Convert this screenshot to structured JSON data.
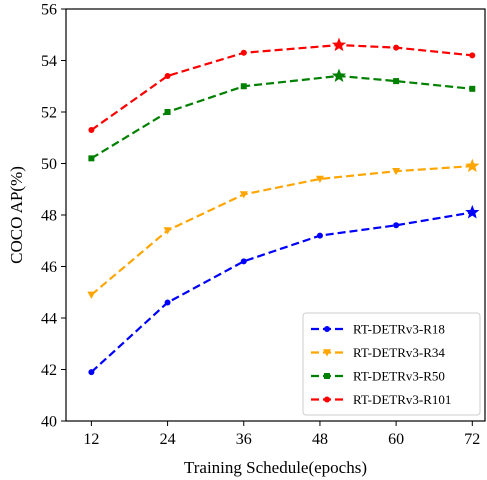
{
  "chart_data": {
    "type": "line",
    "xlabel": "Training Schedule(epochs)",
    "ylabel": "COCO AP(%)",
    "x": [
      12,
      24,
      36,
      48,
      60,
      72
    ],
    "xlim": [
      8,
      74
    ],
    "ylim": [
      40,
      56
    ],
    "yticks": [
      40,
      42,
      44,
      46,
      48,
      50,
      52,
      54,
      56
    ],
    "grid": false,
    "legend_position": "bottom-right",
    "series": [
      {
        "name": "RT-DETRv3-R18",
        "color": "#0000ff",
        "marker": "dot",
        "points": [
          [
            12,
            41.9
          ],
          [
            24,
            44.6
          ],
          [
            36,
            46.2
          ],
          [
            48,
            47.2
          ],
          [
            60,
            47.6
          ],
          [
            72,
            48.1
          ]
        ],
        "highlight": [
          72,
          48.1
        ]
      },
      {
        "name": "RT-DETRv3-R34",
        "color": "#ffa500",
        "marker": "triangle-down",
        "points": [
          [
            12,
            44.9
          ],
          [
            24,
            47.4
          ],
          [
            36,
            48.8
          ],
          [
            48,
            49.4
          ],
          [
            60,
            49.7
          ],
          [
            72,
            49.9
          ]
        ],
        "highlight": [
          72,
          49.9
        ]
      },
      {
        "name": "RT-DETRv3-R50",
        "color": "#008000",
        "marker": "square",
        "points": [
          [
            12,
            50.2
          ],
          [
            24,
            52.0
          ],
          [
            36,
            53.0
          ],
          [
            51,
            53.4
          ],
          [
            60,
            53.2
          ],
          [
            72,
            52.9
          ]
        ],
        "highlight": [
          51,
          53.4
        ]
      },
      {
        "name": "RT-DETRv3-R101",
        "color": "#ff0000",
        "marker": "dot",
        "points": [
          [
            12,
            51.3
          ],
          [
            24,
            53.4
          ],
          [
            36,
            54.3
          ],
          [
            51,
            54.6
          ],
          [
            60,
            54.5
          ],
          [
            72,
            54.2
          ]
        ],
        "highlight": [
          51,
          54.6
        ]
      }
    ]
  }
}
